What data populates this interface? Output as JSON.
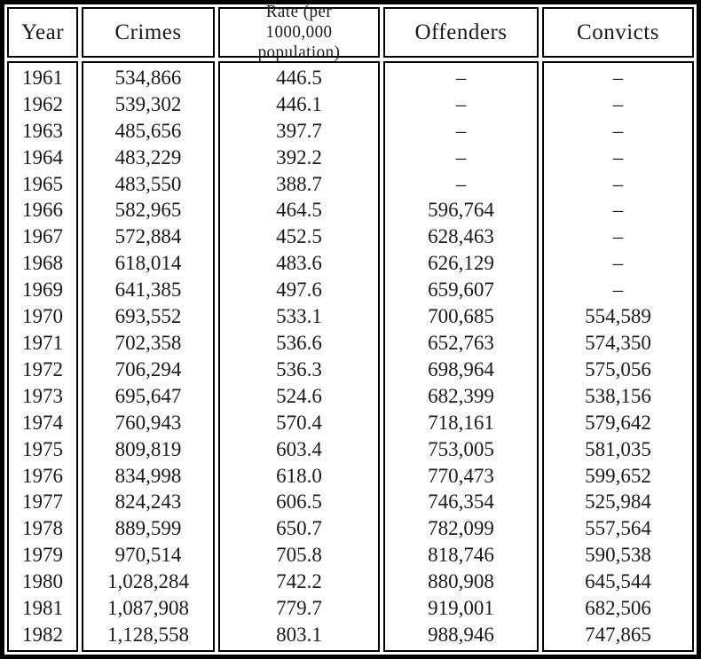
{
  "table": {
    "columns": [
      {
        "key": "year",
        "label": "Year"
      },
      {
        "key": "crimes",
        "label": "Crimes"
      },
      {
        "key": "rate",
        "label": "Rate (per 1000,000 population)"
      },
      {
        "key": "offenders",
        "label": "Offenders"
      },
      {
        "key": "convicts",
        "label": "Convicts"
      }
    ],
    "empty_marker": "–",
    "rows": [
      {
        "year": "1961",
        "crimes": "534,866",
        "rate": "446.5",
        "offenders": "–",
        "convicts": "–"
      },
      {
        "year": "1962",
        "crimes": "539,302",
        "rate": "446.1",
        "offenders": "–",
        "convicts": "–"
      },
      {
        "year": "1963",
        "crimes": "485,656",
        "rate": "397.7",
        "offenders": "–",
        "convicts": "–"
      },
      {
        "year": "1964",
        "crimes": "483,229",
        "rate": "392.2",
        "offenders": "–",
        "convicts": "–"
      },
      {
        "year": "1965",
        "crimes": "483,550",
        "rate": "388.7",
        "offenders": "–",
        "convicts": "–"
      },
      {
        "year": "1966",
        "crimes": "582,965",
        "rate": "464.5",
        "offenders": "596,764",
        "convicts": "–"
      },
      {
        "year": "1967",
        "crimes": "572,884",
        "rate": "452.5",
        "offenders": "628,463",
        "convicts": "–"
      },
      {
        "year": "1968",
        "crimes": "618,014",
        "rate": "483.6",
        "offenders": "626,129",
        "convicts": "–"
      },
      {
        "year": "1969",
        "crimes": "641,385",
        "rate": "497.6",
        "offenders": "659,607",
        "convicts": "–"
      },
      {
        "year": "1970",
        "crimes": "693,552",
        "rate": "533.1",
        "offenders": "700,685",
        "convicts": "554,589"
      },
      {
        "year": "1971",
        "crimes": "702,358",
        "rate": "536.6",
        "offenders": "652,763",
        "convicts": "574,350"
      },
      {
        "year": "1972",
        "crimes": "706,294",
        "rate": "536.3",
        "offenders": "698,964",
        "convicts": "575,056"
      },
      {
        "year": "1973",
        "crimes": "695,647",
        "rate": "524.6",
        "offenders": "682,399",
        "convicts": "538,156"
      },
      {
        "year": "1974",
        "crimes": "760,943",
        "rate": "570.4",
        "offenders": "718,161",
        "convicts": "579,642"
      },
      {
        "year": "1975",
        "crimes": "809,819",
        "rate": "603.4",
        "offenders": "753,005",
        "convicts": "581,035"
      },
      {
        "year": "1976",
        "crimes": "834,998",
        "rate": "618.0",
        "offenders": "770,473",
        "convicts": "599,652"
      },
      {
        "year": "1977",
        "crimes": "824,243",
        "rate": "606.5",
        "offenders": "746,354",
        "convicts": "525,984"
      },
      {
        "year": "1978",
        "crimes": "889,599",
        "rate": "650.7",
        "offenders": "782,099",
        "convicts": "557,564"
      },
      {
        "year": "1979",
        "crimes": "970,514",
        "rate": "705.8",
        "offenders": "818,746",
        "convicts": "590,538"
      },
      {
        "year": "1980",
        "crimes": "1,028,284",
        "rate": "742.2",
        "offenders": "880,908",
        "convicts": "645,544"
      },
      {
        "year": "1981",
        "crimes": "1,087,908",
        "rate": "779.7",
        "offenders": "919,001",
        "convicts": "682,506"
      },
      {
        "year": "1982",
        "crimes": "1,128,558",
        "rate": "803.1",
        "offenders": "988,946",
        "convicts": "747,865"
      }
    ]
  },
  "colors": {
    "border": "#000000",
    "background": "#ffffff",
    "text": "#1a1a1a"
  }
}
